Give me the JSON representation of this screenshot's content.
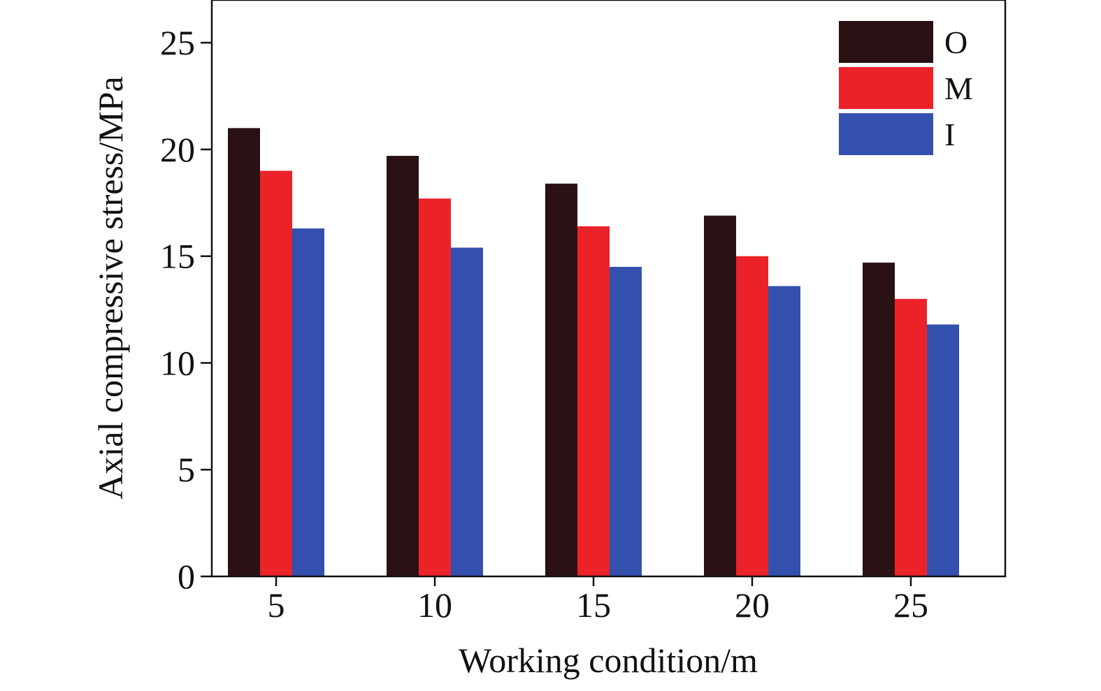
{
  "chart_data": {
    "type": "bar",
    "title": "",
    "xlabel": "Working condition/m",
    "ylabel": "Axial compressive stress/MPa",
    "categories": [
      "5",
      "10",
      "15",
      "20",
      "25"
    ],
    "ylim": [
      0,
      27
    ],
    "yticks": [
      "0",
      "5",
      "10",
      "15",
      "20",
      "25"
    ],
    "grid": false,
    "legend_position": "top-right",
    "series": [
      {
        "name": "O",
        "color": "#2a1214",
        "values": [
          21.0,
          19.7,
          18.4,
          16.9,
          14.7
        ]
      },
      {
        "name": "M",
        "color": "#ec2229",
        "values": [
          19.0,
          17.7,
          16.4,
          15.0,
          13.0
        ]
      },
      {
        "name": "I",
        "color": "#3350ae",
        "values": [
          16.3,
          15.4,
          14.5,
          13.6,
          11.8
        ]
      }
    ]
  }
}
